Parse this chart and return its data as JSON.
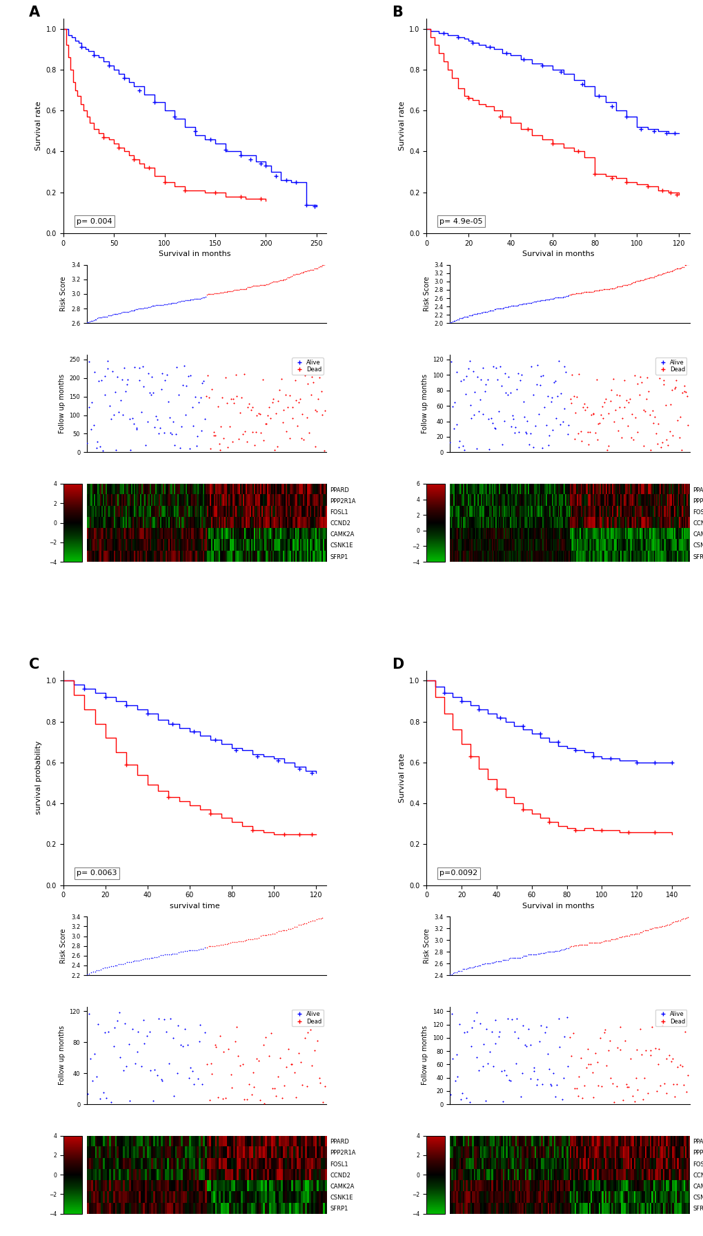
{
  "panels": [
    "A",
    "B",
    "C",
    "D"
  ],
  "KM_curves": {
    "A": {
      "xlabel": "Survival in months",
      "ylabel": "Survival rate",
      "xmax": 260,
      "pvalue": "p= 0.004",
      "blue_x": [
        0,
        5,
        8,
        12,
        15,
        18,
        22,
        25,
        30,
        35,
        40,
        45,
        50,
        55,
        60,
        65,
        70,
        80,
        90,
        100,
        110,
        120,
        130,
        140,
        150,
        160,
        175,
        190,
        200,
        205,
        215,
        225,
        240,
        250
      ],
      "blue_y": [
        1.0,
        0.97,
        0.96,
        0.94,
        0.93,
        0.91,
        0.9,
        0.89,
        0.87,
        0.86,
        0.84,
        0.82,
        0.8,
        0.78,
        0.76,
        0.74,
        0.72,
        0.68,
        0.64,
        0.6,
        0.56,
        0.52,
        0.48,
        0.46,
        0.44,
        0.4,
        0.38,
        0.35,
        0.33,
        0.3,
        0.26,
        0.25,
        0.14,
        0.13
      ],
      "red_x": [
        0,
        3,
        5,
        7,
        10,
        12,
        14,
        17,
        20,
        23,
        26,
        30,
        35,
        40,
        45,
        50,
        55,
        60,
        65,
        70,
        75,
        80,
        90,
        100,
        110,
        120,
        140,
        160,
        180,
        200
      ],
      "red_y": [
        1.0,
        0.92,
        0.86,
        0.8,
        0.74,
        0.7,
        0.67,
        0.63,
        0.6,
        0.57,
        0.54,
        0.51,
        0.49,
        0.47,
        0.46,
        0.44,
        0.42,
        0.4,
        0.38,
        0.36,
        0.34,
        0.32,
        0.28,
        0.25,
        0.23,
        0.21,
        0.2,
        0.18,
        0.17,
        0.16
      ],
      "blue_censor_x": [
        18,
        30,
        45,
        60,
        75,
        90,
        110,
        130,
        145,
        160,
        175,
        185,
        195,
        200,
        210,
        220,
        230,
        240,
        248
      ],
      "blue_censor_y": [
        0.91,
        0.87,
        0.82,
        0.76,
        0.7,
        0.64,
        0.57,
        0.5,
        0.46,
        0.41,
        0.38,
        0.36,
        0.34,
        0.33,
        0.28,
        0.26,
        0.25,
        0.14,
        0.13
      ],
      "red_censor_x": [
        40,
        55,
        70,
        85,
        100,
        120,
        150,
        175,
        195
      ],
      "red_censor_y": [
        0.47,
        0.42,
        0.36,
        0.32,
        0.25,
        0.21,
        0.2,
        0.18,
        0.17
      ]
    },
    "B": {
      "xlabel": "Survival in months",
      "ylabel": "Survival rate",
      "xmax": 125,
      "pvalue": "p= 4.9e-05",
      "blue_x": [
        0,
        2,
        4,
        6,
        8,
        10,
        12,
        15,
        18,
        20,
        22,
        25,
        28,
        32,
        36,
        40,
        45,
        50,
        55,
        60,
        65,
        70,
        75,
        80,
        85,
        90,
        95,
        100,
        105,
        110,
        115,
        120
      ],
      "blue_y": [
        1.0,
        0.99,
        0.99,
        0.98,
        0.98,
        0.97,
        0.97,
        0.96,
        0.95,
        0.94,
        0.93,
        0.92,
        0.91,
        0.9,
        0.88,
        0.87,
        0.85,
        0.83,
        0.82,
        0.8,
        0.78,
        0.75,
        0.72,
        0.67,
        0.64,
        0.6,
        0.57,
        0.52,
        0.51,
        0.5,
        0.49,
        0.49
      ],
      "red_x": [
        0,
        2,
        4,
        6,
        8,
        10,
        12,
        15,
        18,
        20,
        22,
        25,
        28,
        32,
        36,
        40,
        45,
        50,
        55,
        60,
        65,
        70,
        75,
        80,
        85,
        90,
        95,
        100,
        105,
        110,
        115,
        120
      ],
      "red_y": [
        1.0,
        0.96,
        0.92,
        0.88,
        0.84,
        0.8,
        0.76,
        0.71,
        0.67,
        0.66,
        0.65,
        0.63,
        0.62,
        0.6,
        0.57,
        0.54,
        0.51,
        0.48,
        0.46,
        0.44,
        0.42,
        0.4,
        0.37,
        0.29,
        0.28,
        0.27,
        0.25,
        0.24,
        0.23,
        0.21,
        0.2,
        0.19
      ],
      "blue_censor_x": [
        8,
        15,
        22,
        30,
        38,
        46,
        55,
        64,
        74,
        82,
        88,
        95,
        102,
        108,
        114,
        118
      ],
      "blue_censor_y": [
        0.98,
        0.96,
        0.93,
        0.91,
        0.88,
        0.85,
        0.82,
        0.79,
        0.73,
        0.67,
        0.62,
        0.57,
        0.51,
        0.5,
        0.49,
        0.49
      ],
      "red_censor_x": [
        20,
        35,
        48,
        60,
        72,
        80,
        88,
        95,
        105,
        112,
        116,
        119
      ],
      "red_censor_y": [
        0.66,
        0.57,
        0.51,
        0.44,
        0.4,
        0.29,
        0.27,
        0.25,
        0.23,
        0.21,
        0.2,
        0.19
      ]
    },
    "C": {
      "xlabel": "survival time",
      "ylabel": "survival probability",
      "xmax": 125,
      "pvalue": "p= 0.0063",
      "blue_x": [
        0,
        5,
        10,
        15,
        20,
        25,
        30,
        35,
        40,
        45,
        50,
        55,
        60,
        65,
        70,
        75,
        80,
        85,
        90,
        95,
        100,
        105,
        110,
        115,
        120
      ],
      "blue_y": [
        1.0,
        0.98,
        0.96,
        0.94,
        0.92,
        0.9,
        0.88,
        0.86,
        0.84,
        0.81,
        0.79,
        0.77,
        0.75,
        0.73,
        0.71,
        0.69,
        0.67,
        0.66,
        0.64,
        0.63,
        0.62,
        0.6,
        0.58,
        0.56,
        0.55
      ],
      "red_x": [
        0,
        5,
        10,
        15,
        20,
        25,
        30,
        35,
        40,
        45,
        50,
        55,
        60,
        65,
        70,
        75,
        80,
        85,
        90,
        95,
        100,
        105,
        110,
        115,
        120
      ],
      "red_y": [
        1.0,
        0.93,
        0.86,
        0.79,
        0.72,
        0.65,
        0.59,
        0.54,
        0.49,
        0.46,
        0.43,
        0.41,
        0.39,
        0.37,
        0.35,
        0.33,
        0.31,
        0.29,
        0.27,
        0.26,
        0.25,
        0.25,
        0.25,
        0.25,
        0.25
      ],
      "blue_censor_x": [
        10,
        20,
        30,
        40,
        52,
        62,
        72,
        82,
        92,
        102,
        112,
        118
      ],
      "blue_censor_y": [
        0.96,
        0.92,
        0.88,
        0.84,
        0.79,
        0.75,
        0.71,
        0.66,
        0.63,
        0.61,
        0.57,
        0.55
      ],
      "red_censor_x": [
        30,
        50,
        70,
        90,
        105,
        112,
        118
      ],
      "red_censor_y": [
        0.59,
        0.43,
        0.35,
        0.27,
        0.25,
        0.25,
        0.25
      ]
    },
    "D": {
      "xlabel": "Survival in months",
      "ylabel": "Survival rate",
      "xmax": 150,
      "pvalue": "p=0.0092",
      "blue_x": [
        0,
        5,
        10,
        15,
        20,
        25,
        30,
        35,
        40,
        45,
        50,
        55,
        60,
        65,
        70,
        75,
        80,
        85,
        90,
        95,
        100,
        110,
        120,
        130,
        140
      ],
      "blue_y": [
        1.0,
        0.97,
        0.94,
        0.92,
        0.9,
        0.88,
        0.86,
        0.84,
        0.82,
        0.8,
        0.78,
        0.76,
        0.74,
        0.72,
        0.7,
        0.68,
        0.67,
        0.66,
        0.65,
        0.63,
        0.62,
        0.61,
        0.6,
        0.6,
        0.6
      ],
      "red_x": [
        0,
        5,
        10,
        15,
        20,
        25,
        30,
        35,
        40,
        45,
        50,
        55,
        60,
        65,
        70,
        75,
        80,
        85,
        90,
        95,
        100,
        110,
        120,
        130,
        140
      ],
      "red_y": [
        1.0,
        0.92,
        0.84,
        0.76,
        0.69,
        0.63,
        0.57,
        0.52,
        0.47,
        0.43,
        0.4,
        0.37,
        0.35,
        0.33,
        0.31,
        0.29,
        0.28,
        0.27,
        0.28,
        0.27,
        0.27,
        0.26,
        0.26,
        0.26,
        0.25
      ],
      "blue_censor_x": [
        10,
        20,
        30,
        42,
        55,
        65,
        75,
        85,
        95,
        105,
        120,
        130,
        140
      ],
      "blue_censor_y": [
        0.94,
        0.9,
        0.86,
        0.82,
        0.78,
        0.74,
        0.7,
        0.66,
        0.63,
        0.62,
        0.6,
        0.6,
        0.6
      ],
      "red_censor_x": [
        25,
        40,
        55,
        70,
        85,
        100,
        115,
        130
      ],
      "red_censor_y": [
        0.63,
        0.47,
        0.37,
        0.31,
        0.27,
        0.27,
        0.26,
        0.26
      ]
    }
  },
  "risk_score": {
    "A": {
      "ymin": 2.6,
      "ymax": 3.4,
      "yticks": [
        2.6,
        2.8,
        3.0,
        3.2,
        3.4
      ],
      "n": 180
    },
    "B": {
      "ymin": 2.0,
      "ymax": 3.4,
      "yticks": [
        2.0,
        2.2,
        2.4,
        2.6,
        2.8,
        3.0,
        3.2,
        3.4
      ],
      "n": 200
    },
    "C": {
      "ymin": 2.2,
      "ymax": 3.4,
      "yticks": [
        2.2,
        2.4,
        2.6,
        2.8,
        3.0,
        3.2,
        3.4
      ],
      "n": 120
    },
    "D": {
      "ymin": 2.4,
      "ymax": 3.4,
      "yticks": [
        2.4,
        2.6,
        2.8,
        3.0,
        3.2,
        3.4
      ],
      "n": 150
    }
  },
  "followup": {
    "A": {
      "ymax": 250,
      "yticks": [
        0,
        50,
        100,
        150,
        200,
        250
      ]
    },
    "B": {
      "ymax": 120,
      "yticks": [
        0,
        20,
        40,
        60,
        80,
        100,
        120
      ]
    },
    "C": {
      "ymax": 120,
      "yticks": [
        0,
        40,
        80,
        120
      ]
    },
    "D": {
      "ymax": 140,
      "yticks": [
        0,
        20,
        40,
        60,
        80,
        100,
        120,
        140
      ]
    }
  },
  "heatmap": {
    "genes": [
      "PPARD",
      "PPP2R1A",
      "FOSL1",
      "CCND2",
      "CAMK2A",
      "CSNK1E",
      "SFRP1"
    ],
    "colorbar_ticks_A": [
      4,
      2,
      0,
      -2,
      -4
    ],
    "colorbar_ticks_B": [
      6,
      4,
      2,
      0,
      -2,
      -4
    ],
    "colorbar_ticks_CD": [
      4,
      2,
      0,
      -2,
      -4
    ]
  }
}
